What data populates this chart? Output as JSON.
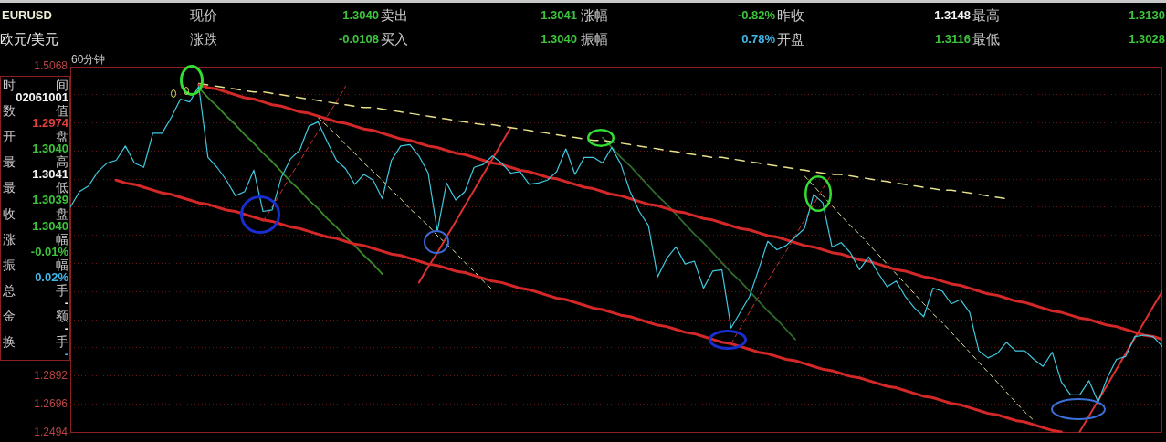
{
  "chart_data": {
    "type": "line",
    "title": "EURUSD",
    "subtitle": "欧元/美元",
    "annotations": [
      "现价",
      "1.3040",
      "卖出",
      "1.3041",
      "涨幅",
      "-0.82%",
      "昨收",
      "1.3148",
      "最高",
      "1.3130",
      "涨跌",
      "-0.0108",
      "买入",
      "1.3040",
      "振幅",
      "0.78%",
      "开盘",
      "1.3116",
      "最低",
      "1.3028",
      "60分钟",
      "时间",
      "02061001",
      "数值",
      "1.2974",
      "开盘",
      "1.3040",
      "最高",
      "1.3041",
      "最低",
      "1.3039",
      "收盘",
      "1.3040",
      "涨幅",
      "-0.01%",
      "振幅",
      "0.02%",
      "总手",
      "-",
      "金额",
      "-",
      "换手",
      "-"
    ],
    "categories": [
      null,
      null,
      null,
      null,
      null,
      null,
      null,
      null,
      null,
      null,
      null,
      null,
      null,
      null,
      null,
      null,
      null,
      null,
      null,
      null,
      null,
      null,
      null,
      null,
      null,
      null,
      null,
      null,
      null,
      null,
      null,
      null,
      null,
      null,
      null,
      null,
      null,
      null,
      null,
      null,
      null,
      null,
      null,
      null,
      null,
      null,
      null,
      null,
      null,
      null,
      null,
      null,
      null,
      null,
      null,
      null,
      null,
      null,
      null,
      null,
      null,
      null,
      null,
      null,
      null,
      null,
      null,
      null,
      null,
      null,
      null,
      null,
      null,
      null,
      null,
      null,
      null,
      null,
      null,
      null,
      null,
      null,
      null,
      null,
      null,
      null,
      null,
      null,
      null,
      null,
      null,
      null,
      null,
      null,
      null,
      null,
      null,
      null,
      null,
      null,
      null,
      null,
      null,
      null,
      null,
      null,
      null,
      null,
      null,
      null,
      null,
      null,
      null,
      null,
      null,
      null,
      null,
      null,
      null,
      null
    ],
    "series": [
      {
        "color": "#40c8e0",
        "values": [
          1.408,
          1.419,
          1.423,
          1.433,
          1.439,
          1.441,
          1.451,
          1.439,
          1.436,
          1.46,
          1.46,
          1.471,
          1.484,
          1.482,
          1.493,
          1.443,
          1.436,
          1.427,
          1.416,
          1.419,
          1.434,
          1.405,
          1.406,
          1.429,
          1.442,
          1.448,
          1.465,
          1.468,
          1.454,
          1.441,
          1.435,
          1.424,
          1.431,
          1.427,
          1.414,
          1.441,
          1.451,
          1.452,
          1.444,
          1.432,
          1.391,
          1.425,
          1.413,
          1.419,
          1.436,
          1.438,
          1.444,
          1.439,
          1.432,
          1.433,
          1.424,
          1.425,
          1.427,
          1.433,
          1.449,
          1.431,
          1.443,
          1.443,
          1.439,
          1.45,
          1.438,
          1.419,
          1.405,
          1.395,
          1.359,
          1.372,
          1.38,
          1.368,
          1.37,
          1.351,
          1.363,
          1.364,
          1.323,
          1.334,
          1.345,
          1.364,
          1.384,
          1.378,
          1.381,
          1.387,
          1.393,
          1.417,
          1.411,
          1.38,
          1.383,
          1.376,
          1.364,
          1.373,
          1.362,
          1.352,
          1.356,
          1.345,
          1.337,
          1.331,
          1.351,
          1.349,
          1.34,
          1.343,
          1.334,
          1.307,
          1.302,
          1.305,
          1.313,
          1.307,
          1.307,
          1.301,
          1.296,
          1.306,
          1.285,
          1.276,
          1.276,
          1.286,
          1.271,
          1.288,
          1.301,
          1.303,
          1.317,
          1.318,
          1.317,
          1.31
        ]
      },
      {
        "type": "line",
        "color": "#d42828",
        "values": [
          null,
          null,
          null,
          null,
          null,
          null,
          null,
          null,
          null,
          null,
          null,
          null,
          null,
          null,
          1.494,
          1.492,
          1.491,
          1.489,
          1.487,
          1.485,
          1.484,
          1.482,
          1.48,
          1.479,
          1.477,
          1.475,
          1.474,
          1.472,
          1.47,
          1.468,
          1.467,
          1.465,
          1.463,
          1.462,
          1.46,
          1.458,
          1.456,
          1.455,
          1.453,
          1.451,
          1.45,
          1.448,
          1.446,
          1.445,
          1.443,
          1.441,
          1.439,
          1.438,
          1.436,
          1.434,
          1.433,
          1.431,
          1.429,
          1.428,
          1.426,
          1.424,
          1.422,
          1.421,
          1.419,
          1.417,
          1.416,
          1.414,
          1.412,
          1.41,
          1.409,
          1.407,
          1.405,
          1.404,
          1.402,
          1.4,
          1.399,
          1.397,
          1.395,
          1.393,
          1.392,
          1.39,
          1.388,
          1.387,
          1.385,
          1.383,
          1.381,
          1.38,
          1.378,
          1.376,
          1.375,
          1.373,
          1.371,
          1.37,
          1.368,
          1.366,
          1.364,
          1.363,
          1.361,
          1.359,
          1.358,
          1.356,
          1.354,
          1.353,
          1.351,
          1.349,
          1.347,
          1.346,
          1.344,
          1.342,
          1.341,
          1.339,
          1.337,
          1.335,
          1.334,
          1.332,
          1.33,
          1.329,
          1.327,
          1.325,
          1.324,
          1.322,
          1.32,
          1.318,
          1.317,
          1.315
        ]
      },
      {
        "type": "line",
        "color": "#d42828",
        "values": [
          null,
          null,
          null,
          null,
          null,
          1.427,
          1.425,
          1.424,
          1.422,
          1.42,
          1.418,
          1.417,
          1.415,
          1.413,
          1.411,
          1.41,
          1.408,
          1.406,
          1.405,
          1.403,
          1.401,
          1.399,
          1.398,
          1.396,
          1.394,
          1.393,
          1.391,
          1.389,
          1.387,
          1.386,
          1.384,
          1.382,
          1.381,
          1.379,
          1.377,
          1.375,
          1.374,
          1.372,
          1.37,
          1.368,
          1.367,
          1.365,
          1.363,
          1.362,
          1.36,
          1.358,
          1.356,
          1.355,
          1.353,
          1.351,
          1.35,
          1.348,
          1.346,
          1.344,
          1.343,
          1.341,
          1.339,
          1.337,
          1.336,
          1.334,
          1.332,
          1.331,
          1.329,
          1.327,
          1.325,
          1.324,
          1.322,
          1.32,
          1.319,
          1.317,
          1.315,
          1.313,
          1.312,
          1.31,
          1.308,
          1.306,
          1.305,
          1.303,
          1.301,
          1.3,
          1.298,
          1.296,
          1.294,
          1.293,
          1.291,
          1.289,
          1.288,
          1.286,
          1.284,
          1.282,
          1.281,
          1.279,
          1.277,
          1.275,
          1.274,
          1.272,
          1.27,
          1.269,
          1.267,
          1.265,
          1.263,
          1.262,
          1.26,
          1.258,
          1.257,
          1.255,
          1.253,
          1.251,
          1.25,
          null,
          null,
          null,
          null,
          null,
          null,
          null,
          null,
          null,
          null,
          null
        ]
      },
      {
        "type": "line",
        "color": "#e6e08a",
        "line_style": "dashed",
        "values": [
          null,
          null,
          null,
          null,
          null,
          null,
          null,
          null,
          null,
          null,
          null,
          null,
          null,
          null,
          1.495,
          1.494,
          1.493,
          1.492,
          1.491,
          1.49,
          1.489,
          1.489,
          1.488,
          1.487,
          1.486,
          1.485,
          1.484,
          1.483,
          1.482,
          1.481,
          1.48,
          1.479,
          1.478,
          1.478,
          1.477,
          1.476,
          1.475,
          1.474,
          1.473,
          1.472,
          1.471,
          1.47,
          1.469,
          1.468,
          1.467,
          1.466,
          1.466,
          1.465,
          1.464,
          1.463,
          1.462,
          1.461,
          1.46,
          1.459,
          1.458,
          1.457,
          1.456,
          1.455,
          1.455,
          1.454,
          1.453,
          1.452,
          1.451,
          1.45,
          1.449,
          1.448,
          1.447,
          1.446,
          1.445,
          1.444,
          1.443,
          1.443,
          1.442,
          1.441,
          1.44,
          1.439,
          1.438,
          1.437,
          1.436,
          1.435,
          1.434,
          1.433,
          1.432,
          1.431,
          1.431,
          1.43,
          1.429,
          1.428,
          1.427,
          1.426,
          1.425,
          1.424,
          1.423,
          1.422,
          1.421,
          1.42,
          1.42,
          1.419,
          1.418,
          1.417,
          1.416,
          1.415,
          1.414,
          null,
          null,
          null,
          null,
          null,
          null,
          null,
          null,
          null,
          null,
          null,
          null,
          null,
          null,
          null,
          null,
          null
        ]
      },
      {
        "type": "line",
        "color": "#3a8a2a",
        "values": [
          null,
          null,
          null,
          null,
          null,
          null,
          null,
          null,
          null,
          null,
          null,
          null,
          null,
          null,
          1.492,
          1.485,
          1.479,
          1.472,
          1.466,
          1.459,
          1.453,
          1.446,
          1.44,
          1.433,
          1.426,
          1.42,
          1.413,
          1.407,
          1.4,
          1.394,
          1.387,
          1.381,
          1.374,
          1.368,
          1.361,
          null,
          null,
          null,
          null,
          null,
          null,
          null,
          null,
          null,
          null,
          null,
          null,
          null,
          null,
          null,
          null,
          null,
          null,
          null,
          null,
          null,
          null,
          null,
          null,
          null,
          null,
          null,
          null,
          null,
          null,
          null,
          null,
          null,
          null,
          null,
          null,
          null,
          null,
          null,
          null,
          null,
          null,
          null,
          null,
          null,
          null,
          null,
          null,
          null,
          null,
          null,
          null,
          null,
          null,
          null,
          null,
          null,
          null,
          null,
          null,
          null,
          null,
          null,
          null,
          null,
          null,
          null,
          null,
          null,
          null,
          null,
          null,
          null,
          null,
          null,
          null,
          null,
          null,
          null,
          null,
          null,
          null,
          null,
          null,
          null
        ]
      },
      {
        "type": "line",
        "color": "#2e6a2e",
        "values": [
          null,
          null,
          null,
          null,
          null,
          null,
          null,
          null,
          null,
          null,
          null,
          null,
          null,
          null,
          null,
          null,
          null,
          null,
          null,
          null,
          null,
          null,
          null,
          null,
          null,
          null,
          null,
          null,
          null,
          null,
          null,
          null,
          null,
          null,
          null,
          null,
          null,
          null,
          null,
          null,
          null,
          null,
          null,
          null,
          null,
          null,
          null,
          null,
          null,
          null,
          null,
          null,
          null,
          null,
          null,
          null,
          null,
          null,
          1.457,
          1.45,
          1.443,
          1.437,
          1.43,
          1.423,
          1.416,
          1.41,
          1.403,
          1.396,
          1.389,
          1.383,
          1.376,
          1.369,
          1.362,
          1.356,
          1.349,
          1.342,
          1.335,
          1.329,
          1.322,
          1.315,
          null,
          null,
          null,
          null,
          null,
          null,
          null,
          null,
          null,
          null,
          null,
          null,
          null,
          null,
          null,
          null,
          null,
          null,
          null,
          null,
          null,
          null,
          null,
          null,
          null,
          null,
          null,
          null,
          null,
          null,
          null,
          null,
          null,
          null,
          null,
          null,
          null,
          null,
          null,
          null
        ]
      },
      {
        "type": "line",
        "color": "#dd3030",
        "values": [
          null,
          null,
          null,
          null,
          null,
          null,
          null,
          null,
          null,
          null,
          null,
          null,
          null,
          null,
          null,
          null,
          null,
          null,
          null,
          null,
          null,
          null,
          null,
          null,
          null,
          null,
          null,
          null,
          null,
          null,
          null,
          null,
          null,
          null,
          null,
          null,
          null,
          null,
          1.355,
          1.366,
          1.376,
          1.387,
          1.398,
          1.409,
          1.42,
          1.431,
          1.442,
          1.453,
          1.464,
          null,
          null,
          null,
          null,
          null,
          null,
          null,
          null,
          null,
          null,
          null,
          null,
          null,
          null,
          null,
          null,
          null,
          null,
          null,
          null,
          null,
          null,
          null,
          null,
          null,
          null,
          null,
          null,
          null,
          null,
          null,
          null,
          null,
          null,
          null,
          null,
          null,
          null,
          null,
          null,
          null,
          null,
          null,
          null,
          null,
          null,
          null,
          null,
          null,
          null,
          null,
          null,
          null,
          null,
          null,
          null,
          null,
          null,
          null,
          null,
          null,
          null,
          null,
          null,
          null,
          null,
          null,
          null,
          null,
          null,
          null
        ]
      },
      {
        "type": "line",
        "color": "#dd3030",
        "values": [
          null,
          null,
          null,
          null,
          null,
          null,
          null,
          null,
          null,
          null,
          null,
          null,
          null,
          null,
          null,
          null,
          null,
          null,
          null,
          null,
          null,
          null,
          null,
          null,
          null,
          null,
          null,
          null,
          null,
          null,
          null,
          null,
          null,
          null,
          null,
          null,
          null,
          null,
          null,
          null,
          null,
          null,
          null,
          null,
          null,
          null,
          null,
          null,
          null,
          null,
          null,
          null,
          null,
          null,
          null,
          null,
          null,
          null,
          null,
          null,
          null,
          null,
          null,
          null,
          null,
          null,
          null,
          null,
          null,
          null,
          null,
          null,
          null,
          null,
          null,
          null,
          null,
          null,
          null,
          null,
          null,
          null,
          null,
          null,
          null,
          null,
          null,
          null,
          null,
          null,
          null,
          null,
          null,
          null,
          null,
          null,
          null,
          null,
          null,
          null,
          null,
          null,
          null,
          null,
          null,
          null,
          null,
          null,
          null,
          null,
          1.25,
          1.261,
          1.272,
          1.283,
          1.294,
          1.305,
          1.316,
          1.327,
          1.338,
          1.349
        ]
      },
      {
        "type": "line",
        "color": "#c83030",
        "line_style": "dashed",
        "values": [
          null,
          null,
          null,
          null,
          null,
          null,
          null,
          null,
          null,
          null,
          null,
          null,
          null,
          null,
          null,
          null,
          null,
          null,
          null,
          null,
          null,
          1.398,
          1.408,
          1.419,
          1.43,
          1.44,
          1.451,
          1.461,
          1.472,
          1.482,
          1.493,
          null,
          null,
          null,
          null,
          null,
          null,
          null,
          null,
          null,
          null,
          null,
          null,
          null,
          null,
          null,
          null,
          null,
          null,
          null,
          null,
          null,
          null,
          null,
          null,
          null,
          null,
          null,
          null,
          null,
          null,
          null,
          null,
          null,
          null,
          null,
          null,
          null,
          null,
          null,
          null,
          null,
          null,
          null,
          null,
          null,
          null,
          null,
          null,
          null,
          null,
          null,
          null,
          null,
          null,
          null,
          null,
          null,
          null,
          null,
          null,
          null,
          null,
          null,
          null,
          null,
          null,
          null,
          null,
          null,
          null,
          null,
          null,
          null,
          null,
          null,
          null,
          null,
          null,
          null,
          null,
          null,
          null,
          null,
          null,
          null,
          null,
          null,
          null,
          null
        ]
      },
      {
        "type": "line",
        "color": "#c83030",
        "line_style": "dashed",
        "values": [
          null,
          null,
          null,
          null,
          null,
          null,
          null,
          null,
          null,
          null,
          null,
          null,
          null,
          null,
          null,
          null,
          null,
          null,
          null,
          null,
          null,
          null,
          null,
          null,
          null,
          null,
          null,
          null,
          null,
          null,
          null,
          null,
          null,
          null,
          null,
          null,
          null,
          null,
          null,
          null,
          null,
          null,
          null,
          null,
          null,
          null,
          null,
          null,
          null,
          null,
          null,
          null,
          null,
          null,
          null,
          null,
          null,
          null,
          null,
          null,
          null,
          null,
          null,
          null,
          null,
          null,
          null,
          null,
          null,
          null,
          null,
          null,
          1.312,
          1.323,
          1.334,
          1.345,
          1.356,
          1.367,
          1.377,
          1.388,
          1.399,
          1.41,
          1.421,
          1.432,
          null,
          null,
          null,
          null,
          null,
          null,
          null,
          null,
          null,
          null,
          null,
          null,
          null,
          null,
          null,
          null,
          null,
          null,
          null,
          null,
          null,
          null,
          null,
          null,
          null,
          null,
          null,
          null,
          null,
          null,
          null,
          null,
          null,
          null,
          null,
          null
        ]
      },
      {
        "type": "line",
        "color": "#d8e8a0",
        "line_style": "dashed",
        "values": [
          null,
          null,
          null,
          null,
          null,
          null,
          null,
          null,
          null,
          null,
          null,
          null,
          null,
          null,
          null,
          null,
          null,
          null,
          null,
          null,
          null,
          null,
          null,
          null,
          null,
          null,
          null,
          1.471,
          1.465,
          1.459,
          1.452,
          1.446,
          1.439,
          1.433,
          1.427,
          1.42,
          1.414,
          1.407,
          1.401,
          1.395,
          1.388,
          1.382,
          1.376,
          1.369,
          1.363,
          1.356,
          1.35,
          null,
          null,
          null,
          null,
          null,
          null,
          null,
          null,
          null,
          null,
          null,
          null,
          null,
          null,
          null,
          null,
          null,
          null,
          null,
          null,
          null,
          null,
          null,
          null,
          null,
          null,
          null,
          null,
          null,
          null,
          null,
          null,
          null,
          null,
          null,
          null,
          null,
          null,
          null,
          null,
          null,
          null,
          null,
          null,
          null,
          null,
          null,
          null,
          null,
          null,
          null,
          null,
          null,
          null,
          null,
          null,
          null,
          null,
          null,
          null,
          null,
          null,
          null,
          null,
          null,
          null,
          null,
          null,
          null,
          null,
          null,
          null,
          null
        ]
      },
      {
        "type": "line",
        "color": "#d8e8a0",
        "line_style": "dashed",
        "values": [
          null,
          null,
          null,
          null,
          null,
          null,
          null,
          null,
          null,
          null,
          null,
          null,
          null,
          null,
          null,
          null,
          null,
          null,
          null,
          null,
          null,
          null,
          null,
          null,
          null,
          null,
          null,
          null,
          null,
          null,
          null,
          null,
          null,
          null,
          null,
          null,
          null,
          null,
          null,
          null,
          null,
          null,
          null,
          null,
          null,
          null,
          null,
          null,
          null,
          null,
          null,
          null,
          null,
          null,
          null,
          null,
          null,
          null,
          null,
          null,
          null,
          null,
          null,
          null,
          null,
          null,
          null,
          null,
          null,
          null,
          null,
          null,
          null,
          null,
          null,
          null,
          null,
          null,
          null,
          null,
          1.43,
          1.423,
          1.416,
          1.409,
          1.402,
          1.395,
          1.389,
          1.382,
          1.375,
          1.368,
          1.361,
          1.354,
          1.347,
          1.34,
          1.333,
          1.327,
          1.32,
          1.313,
          1.306,
          1.299,
          1.292,
          1.285,
          1.278,
          1.271,
          1.264,
          1.258,
          null,
          null,
          null,
          null,
          null,
          null,
          null,
          null,
          null,
          null,
          null,
          null,
          null,
          null
        ]
      }
    ],
    "ylim": [
      1.2494,
      1.5068
    ],
    "yticks": [
      1.2494,
      1.2696,
      1.2892,
      {
        "value": 1.309,
        "label": null
      },
      {
        "value": 1.3288,
        "label": null
      },
      {
        "value": 1.3486,
        "label": null
      },
      {
        "value": 1.3684,
        "label": null
      },
      {
        "value": 1.3882,
        "label": null
      },
      {
        "value": 1.408,
        "label": null
      },
      {
        "value": 1.4278,
        "label": null
      },
      {
        "value": 1.4476,
        "label": null
      },
      {
        "value": 1.4674,
        "label": null
      },
      {
        "value": 1.4872,
        "label": null
      },
      1.5068
    ],
    "grid": "y",
    "tick_labels": "y",
    "marker": "none",
    "line_style": "solid"
  }
}
